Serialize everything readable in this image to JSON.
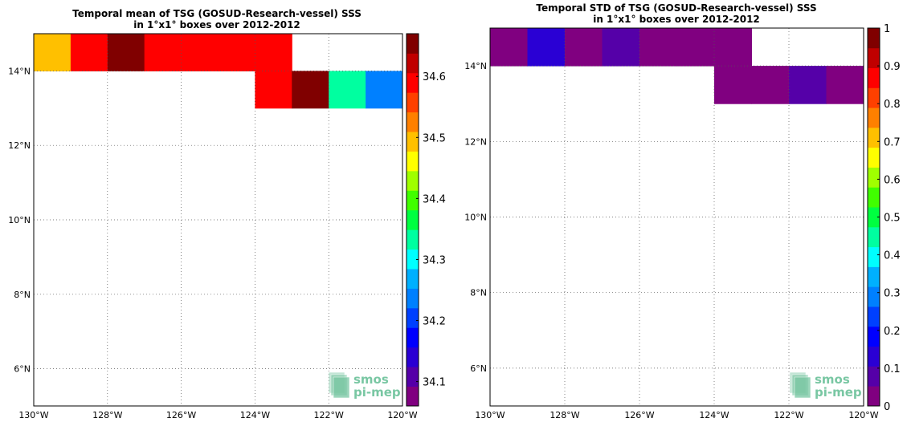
{
  "chart_data": [
    {
      "type": "heatmap",
      "title": "Temporal mean of TSG (GOSUD-Research-vessel) SSS",
      "subtitle": "in 1°x1° boxes over 2012-2012",
      "xlim": [
        -130,
        -120
      ],
      "ylim": [
        5,
        15
      ],
      "xticks": [
        -130,
        -128,
        -126,
        -124,
        -122,
        -120
      ],
      "xtick_labels": [
        "130°W",
        "128°W",
        "126°W",
        "124°W",
        "122°W",
        "120°W"
      ],
      "yticks": [
        6,
        8,
        10,
        12,
        14
      ],
      "ytick_labels": [
        "6°N",
        "8°N",
        "10°N",
        "12°N",
        "14°N"
      ],
      "grid": true,
      "cells": [
        {
          "lon": [
            -130,
            -129
          ],
          "lat": [
            14,
            15
          ],
          "value": 34.5
        },
        {
          "lon": [
            -129,
            -128
          ],
          "lat": [
            14,
            15
          ],
          "value": 34.6
        },
        {
          "lon": [
            -128,
            -127
          ],
          "lat": [
            14,
            15
          ],
          "value": 34.66
        },
        {
          "lon": [
            -127,
            -126
          ],
          "lat": [
            14,
            15
          ],
          "value": 34.59
        },
        {
          "lon": [
            -126,
            -125
          ],
          "lat": [
            14,
            15
          ],
          "value": 34.59
        },
        {
          "lon": [
            -125,
            -124
          ],
          "lat": [
            14,
            15
          ],
          "value": 34.59
        },
        {
          "lon": [
            -124,
            -123
          ],
          "lat": [
            14,
            15
          ],
          "value": 34.59
        },
        {
          "lon": [
            -124,
            -123
          ],
          "lat": [
            13,
            14
          ],
          "value": 34.6
        },
        {
          "lon": [
            -123,
            -122
          ],
          "lat": [
            13,
            14
          ],
          "value": 34.66
        },
        {
          "lon": [
            -122,
            -121
          ],
          "lat": [
            13,
            14
          ],
          "value": 34.34
        },
        {
          "lon": [
            -121,
            -120
          ],
          "lat": [
            13,
            14
          ],
          "value": 34.24
        }
      ],
      "colorbar": {
        "min": 34.06,
        "max": 34.67,
        "ticks": [
          34.1,
          34.2,
          34.3,
          34.4,
          34.5,
          34.6
        ],
        "tick_labels": [
          "34.1",
          "34.2",
          "34.3",
          "34.4",
          "34.5",
          "34.6"
        ]
      }
    },
    {
      "type": "heatmap",
      "title": "Temporal STD of TSG (GOSUD-Research-vessel) SSS",
      "subtitle": "in 1°x1° boxes over 2012-2012",
      "xlim": [
        -130,
        -120
      ],
      "ylim": [
        5,
        15
      ],
      "xticks": [
        -130,
        -128,
        -126,
        -124,
        -122,
        -120
      ],
      "xtick_labels": [
        "130°W",
        "128°W",
        "126°W",
        "124°W",
        "122°W",
        "120°W"
      ],
      "yticks": [
        6,
        8,
        10,
        12,
        14
      ],
      "ytick_labels": [
        "6°N",
        "8°N",
        "10°N",
        "12°N",
        "14°N"
      ],
      "grid": true,
      "cells": [
        {
          "lon": [
            -130,
            -129
          ],
          "lat": [
            14,
            15
          ],
          "value": 0.03
        },
        {
          "lon": [
            -129,
            -128
          ],
          "lat": [
            14,
            15
          ],
          "value": 0.13
        },
        {
          "lon": [
            -128,
            -127
          ],
          "lat": [
            14,
            15
          ],
          "value": 0.03
        },
        {
          "lon": [
            -127,
            -126
          ],
          "lat": [
            14,
            15
          ],
          "value": 0.07
        },
        {
          "lon": [
            -126,
            -125
          ],
          "lat": [
            14,
            15
          ],
          "value": 0.03
        },
        {
          "lon": [
            -125,
            -124
          ],
          "lat": [
            14,
            15
          ],
          "value": 0.03
        },
        {
          "lon": [
            -124,
            -123
          ],
          "lat": [
            14,
            15
          ],
          "value": 0.03
        },
        {
          "lon": [
            -124,
            -123
          ],
          "lat": [
            13,
            14
          ],
          "value": 0.03
        },
        {
          "lon": [
            -123,
            -122
          ],
          "lat": [
            13,
            14
          ],
          "value": 0.03
        },
        {
          "lon": [
            -122,
            -121
          ],
          "lat": [
            13,
            14
          ],
          "value": 0.07
        },
        {
          "lon": [
            -121,
            -120
          ],
          "lat": [
            13,
            14
          ],
          "value": 0.03
        }
      ],
      "colorbar": {
        "min": 0,
        "max": 1,
        "ticks": [
          0,
          0.1,
          0.2,
          0.3,
          0.4,
          0.5,
          0.6,
          0.7,
          0.8,
          0.9,
          1
        ],
        "tick_labels": [
          "0",
          "0.1",
          "0.2",
          "0.3",
          "0.4",
          "0.5",
          "0.6",
          "0.7",
          "0.8",
          "0.9",
          "1"
        ]
      }
    }
  ],
  "colormap": [
    "#800080",
    "#5500a8",
    "#2a00d4",
    "#0000ff",
    "#0040ff",
    "#0080ff",
    "#00b0ff",
    "#00ffff",
    "#00ffa0",
    "#00ff40",
    "#40ff00",
    "#a0ff00",
    "#ffff00",
    "#ffc000",
    "#ff8000",
    "#ff4000",
    "#ff0000",
    "#c00000",
    "#800000"
  ],
  "logo": {
    "line1": "smos",
    "line2": "pi-mep"
  }
}
